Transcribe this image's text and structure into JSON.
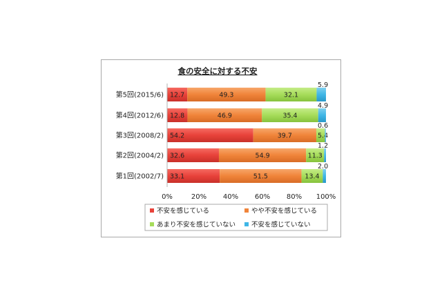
{
  "chart_data": {
    "type": "bar",
    "stacked": "100%",
    "orientation": "horizontal",
    "title": "食の安全に対する不安",
    "categories": [
      "第5回(2015/6)",
      "第4回(2012/6)",
      "第3回(2008/2)",
      "第2回(2004/2)",
      "第1回(2002/7)"
    ],
    "series": [
      {
        "name": "不安を感じている",
        "color": "#e8423a",
        "values": [
          12.7,
          12.8,
          54.2,
          32.6,
          33.1
        ]
      },
      {
        "name": "やや不安を感じている",
        "color": "#f0843a",
        "values": [
          49.3,
          46.9,
          39.7,
          54.9,
          51.5
        ]
      },
      {
        "name": "あまり不安を感じていない",
        "color": "#a6dc5a",
        "values": [
          32.1,
          35.4,
          5.4,
          11.3,
          13.4
        ]
      },
      {
        "name": "不安を感じていない",
        "color": "#3fb6e6",
        "values": [
          5.9,
          4.9,
          0.6,
          1.2,
          2.0
        ]
      }
    ],
    "data_labels": [
      [
        "12.7",
        "49.3",
        "32.1",
        "5.9"
      ],
      [
        "12.8",
        "46.9",
        "35.4",
        "4.9"
      ],
      [
        "54.2",
        "39.7",
        "5.4",
        "0.6"
      ],
      [
        "32.6",
        "54.9",
        "11.3",
        "1.2"
      ],
      [
        "33.1",
        "51.5",
        "13.4",
        "2.0"
      ]
    ],
    "xlim": [
      0,
      100
    ],
    "x_ticks": [
      "0%",
      "20%",
      "40%",
      "60%",
      "80%",
      "100%"
    ],
    "legend_position": "bottom",
    "grid": false
  }
}
